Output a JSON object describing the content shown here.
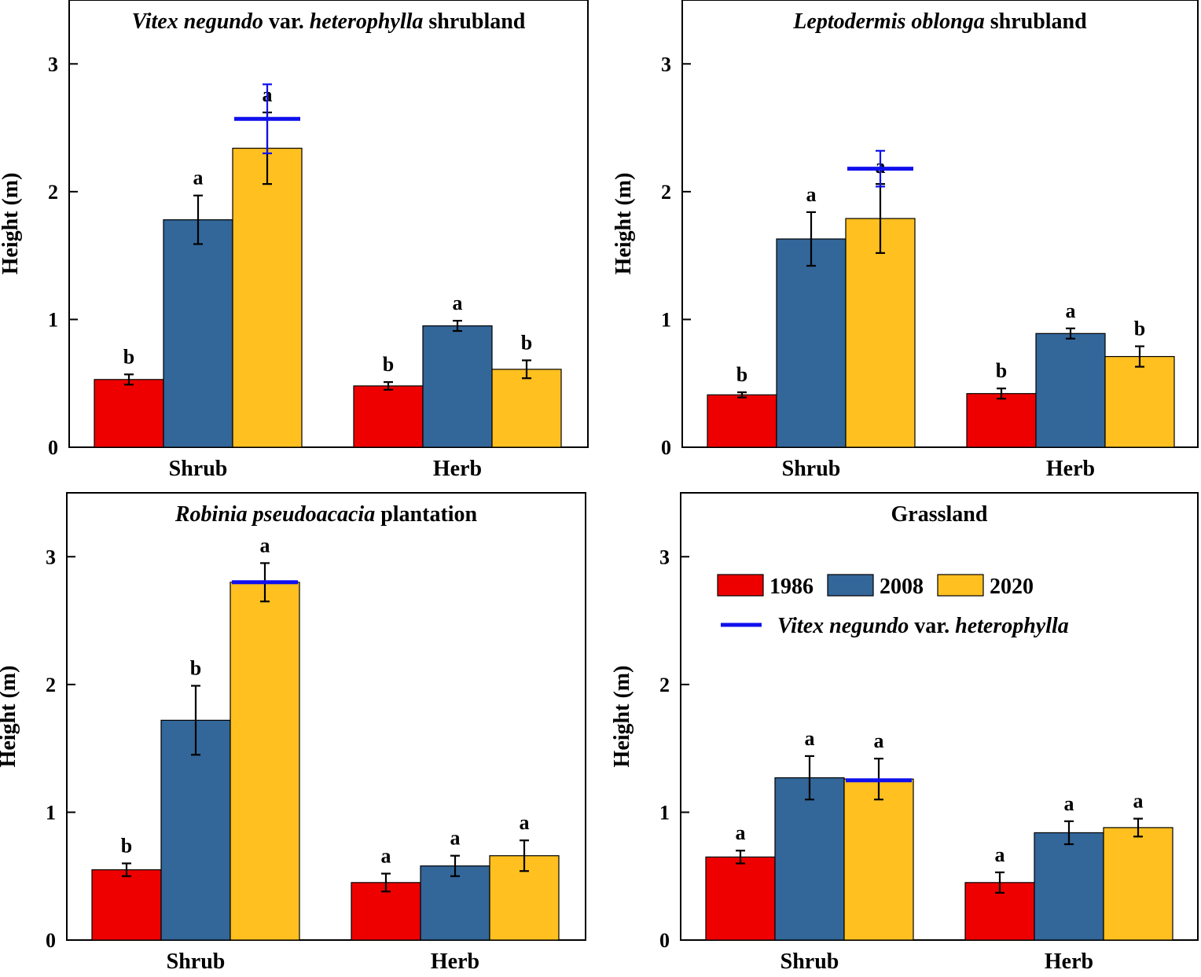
{
  "legend": {
    "items": [
      {
        "label": "1986",
        "color": "#ee0000"
      },
      {
        "label": "2008",
        "color": "#336699"
      },
      {
        "label": "2020",
        "color": "#ffc020"
      }
    ],
    "line_label_parts": [
      {
        "text": "Vitex negundo",
        "style": "italic"
      },
      {
        "text": " var. ",
        "style": "normal"
      },
      {
        "text": "heterophylla",
        "style": "italic"
      }
    ],
    "line_color": "#1010ee",
    "placement": "inside upper area of Grassland panel"
  },
  "chart_data": [
    {
      "type": "bar",
      "title_parts": [
        {
          "text": "Vitex negundo",
          "style": "italic"
        },
        {
          "text": " var. ",
          "style": "normal"
        },
        {
          "text": "heterophylla",
          "style": "italic"
        },
        {
          "text": " shrubland",
          "style": "normal"
        }
      ],
      "ylabel": "Height (m)",
      "ylim": [
        0,
        3.5
      ],
      "yticks": [
        0,
        1,
        2,
        3
      ],
      "categories": [
        "Shrub",
        "Herb"
      ],
      "series": [
        {
          "name": "1986",
          "values": [
            0.53,
            0.48
          ],
          "errors": [
            0.04,
            0.03
          ],
          "letters": [
            "b",
            "b"
          ]
        },
        {
          "name": "2008",
          "values": [
            1.78,
            0.95
          ],
          "errors": [
            0.19,
            0.04
          ],
          "letters": [
            "a",
            "a"
          ]
        },
        {
          "name": "2020",
          "values": [
            2.34,
            0.61
          ],
          "errors": [
            0.28,
            0.07
          ],
          "letters": [
            "a",
            "b"
          ]
        }
      ],
      "dominant_species": {
        "category": "Shrub",
        "series": "2020",
        "value": 2.57,
        "error": 0.27
      }
    },
    {
      "type": "bar",
      "title_parts": [
        {
          "text": "Leptodermis oblonga",
          "style": "italic"
        },
        {
          "text": " shrubland",
          "style": "normal"
        }
      ],
      "ylabel": "Height (m)",
      "ylim": [
        0,
        3.5
      ],
      "yticks": [
        0,
        1,
        2,
        3
      ],
      "categories": [
        "Shrub",
        "Herb"
      ],
      "series": [
        {
          "name": "1986",
          "values": [
            0.41,
            0.42
          ],
          "errors": [
            0.02,
            0.04
          ],
          "letters": [
            "b",
            "b"
          ]
        },
        {
          "name": "2008",
          "values": [
            1.63,
            0.89
          ],
          "errors": [
            0.21,
            0.04
          ],
          "letters": [
            "a",
            "a"
          ]
        },
        {
          "name": "2020",
          "values": [
            1.79,
            0.71
          ],
          "errors": [
            0.27,
            0.08
          ],
          "letters": [
            "a",
            "b"
          ]
        }
      ],
      "dominant_species": {
        "category": "Shrub",
        "series": "2020",
        "value": 2.18,
        "error": 0.14
      }
    },
    {
      "type": "bar",
      "title_parts": [
        {
          "text": "Robinia pseudoacacia",
          "style": "italic"
        },
        {
          "text": " plantation",
          "style": "normal"
        }
      ],
      "ylabel": "Height (m)",
      "ylim": [
        0,
        3.5
      ],
      "yticks": [
        0,
        1,
        2,
        3
      ],
      "categories": [
        "Shrub",
        "Herb"
      ],
      "series": [
        {
          "name": "1986",
          "values": [
            0.55,
            0.45
          ],
          "errors": [
            0.05,
            0.07
          ],
          "letters": [
            "b",
            "a"
          ]
        },
        {
          "name": "2008",
          "values": [
            1.72,
            0.58
          ],
          "errors": [
            0.27,
            0.08
          ],
          "letters": [
            "b",
            "a"
          ]
        },
        {
          "name": "2020",
          "values": [
            2.8,
            0.66
          ],
          "errors": [
            0.15,
            0.12
          ],
          "letters": [
            "a",
            "a"
          ]
        }
      ],
      "dominant_species": {
        "category": "Shrub",
        "series": "2020",
        "value": 2.8,
        "error": 0
      }
    },
    {
      "type": "bar",
      "title_parts": [
        {
          "text": "Grassland",
          "style": "normal"
        }
      ],
      "ylabel": "Height (m)",
      "ylim": [
        0,
        3.5
      ],
      "yticks": [
        0,
        1,
        2,
        3
      ],
      "categories": [
        "Shrub",
        "Herb"
      ],
      "series": [
        {
          "name": "1986",
          "values": [
            0.65,
            0.45
          ],
          "errors": [
            0.05,
            0.08
          ],
          "letters": [
            "a",
            "a"
          ]
        },
        {
          "name": "2008",
          "values": [
            1.27,
            0.84
          ],
          "errors": [
            0.17,
            0.09
          ],
          "letters": [
            "a",
            "a"
          ]
        },
        {
          "name": "2020",
          "values": [
            1.26,
            0.88
          ],
          "errors": [
            0.16,
            0.07
          ],
          "letters": [
            "a",
            "a"
          ]
        }
      ],
      "dominant_species": {
        "category": "Shrub",
        "series": "2020",
        "value": 1.25,
        "error": 0
      }
    }
  ]
}
